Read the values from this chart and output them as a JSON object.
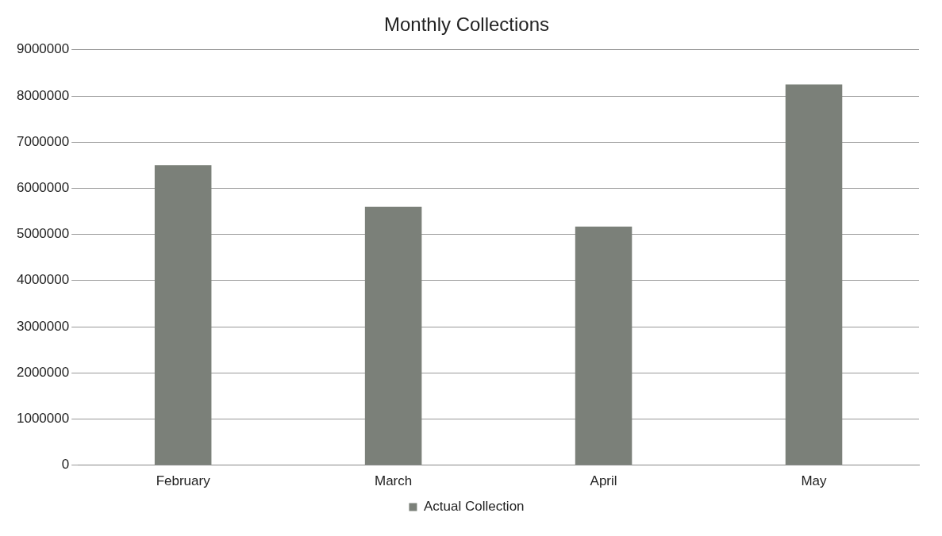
{
  "chart_data": {
    "type": "bar",
    "title": "Monthly Collections",
    "categories": [
      "February",
      "March",
      "April",
      "May"
    ],
    "series": [
      {
        "name": "Actual Collection",
        "color": "#7b8079",
        "values": [
          6500000,
          5600000,
          5170000,
          8250000
        ]
      }
    ],
    "ylim": [
      0,
      9000000
    ],
    "yticks": [
      0,
      1000000,
      2000000,
      3000000,
      4000000,
      5000000,
      6000000,
      7000000,
      8000000,
      9000000
    ],
    "grid": "y",
    "legend": "bottom"
  }
}
